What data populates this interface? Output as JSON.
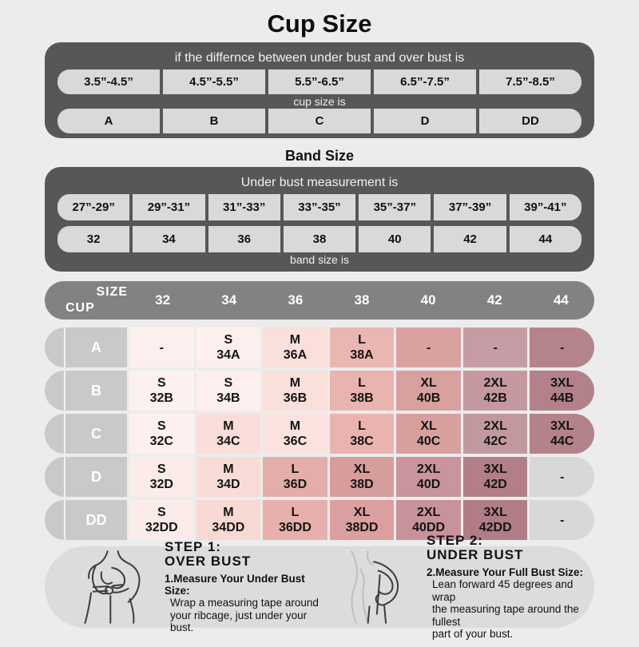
{
  "title": "Cup Size",
  "band_title": "Band Size",
  "colors": {
    "page_bg": "#ececec",
    "dark_panel": "#575757",
    "light_cell": "#d9d9d9",
    "matrix_header_bg": "#828282",
    "matrix_label_bg": "#c9c9c9",
    "steps_panel_bg": "#dcdcdc",
    "empty_cell_gray": "#d8d8d8"
  },
  "cup_table": {
    "header": "if the differnce between under bust and over bust is",
    "ranges": [
      "3.5”-4.5”",
      "4.5”-5.5”",
      "5.5”-6.5”",
      "6.5”-7.5”",
      "7.5”-8.5”"
    ],
    "mid_label": "cup size is",
    "cups": [
      "A",
      "B",
      "C",
      "D",
      "DD"
    ]
  },
  "band_table": {
    "header": "Under bust measurement is",
    "ranges": [
      "27”-29”",
      "29”-31”",
      "31”-33”",
      "33”-35”",
      "35”-37”",
      "37”-39”",
      "39”-41”"
    ],
    "sizes": [
      "32",
      "34",
      "36",
      "38",
      "40",
      "42",
      "44"
    ],
    "footer": "band size is"
  },
  "matrix": {
    "corner_top": "SIZE",
    "corner_bottom": "CUP",
    "columns": [
      "32",
      "34",
      "36",
      "38",
      "40",
      "42",
      "44"
    ],
    "rows": [
      {
        "cup": "A",
        "cells": [
          {
            "size": "-",
            "code": "",
            "bg": "#fcefee"
          },
          {
            "size": "S",
            "code": "34A",
            "bg": "#fcefee"
          },
          {
            "size": "M",
            "code": "36A",
            "bg": "#fbdfda"
          },
          {
            "size": "L",
            "code": "38A",
            "bg": "#eab6b2"
          },
          {
            "size": "-",
            "code": "",
            "bg": "#d9a1a0"
          },
          {
            "size": "-",
            "code": "",
            "bg": "#c59ca3"
          },
          {
            "size": "-",
            "code": "",
            "bg": "#b5838a"
          }
        ]
      },
      {
        "cup": "B",
        "cells": [
          {
            "size": "S",
            "code": "32B",
            "bg": "#fdf1f0"
          },
          {
            "size": "S",
            "code": "34B",
            "bg": "#fcefee"
          },
          {
            "size": "M",
            "code": "36B",
            "bg": "#fbdfda"
          },
          {
            "size": "L",
            "code": "38B",
            "bg": "#e9b3af"
          },
          {
            "size": "XL",
            "code": "40B",
            "bg": "#d8a09f"
          },
          {
            "size": "2XL",
            "code": "42B",
            "bg": "#c3999f"
          },
          {
            "size": "3XL",
            "code": "44B",
            "bg": "#b3818a"
          }
        ]
      },
      {
        "cup": "C",
        "cells": [
          {
            "size": "S",
            "code": "32C",
            "bg": "#fdf0ef"
          },
          {
            "size": "M",
            "code": "34C",
            "bg": "#fbdeda"
          },
          {
            "size": "M",
            "code": "36C",
            "bg": "#fce3df"
          },
          {
            "size": "L",
            "code": "38C",
            "bg": "#e9b4b0"
          },
          {
            "size": "XL",
            "code": "40C",
            "bg": "#d7a09f"
          },
          {
            "size": "2XL",
            "code": "42C",
            "bg": "#c2989f"
          },
          {
            "size": "3XL",
            "code": "44C",
            "bg": "#b4828a"
          }
        ]
      },
      {
        "cup": "D",
        "cells": [
          {
            "size": "S",
            "code": "32D",
            "bg": "#fbebe9"
          },
          {
            "size": "M",
            "code": "34D",
            "bg": "#f9dcd8"
          },
          {
            "size": "L",
            "code": "36D",
            "bg": "#e4adaa"
          },
          {
            "size": "XL",
            "code": "38D",
            "bg": "#d79d9c"
          },
          {
            "size": "2XL",
            "code": "40D",
            "bg": "#c9949b"
          },
          {
            "size": "3XL",
            "code": "42D",
            "bg": "#b27f88"
          },
          {
            "size": "-",
            "code": "",
            "bg": "#d8d8d8"
          }
        ]
      },
      {
        "cup": "DD",
        "cells": [
          {
            "size": "S",
            "code": "32DD",
            "bg": "#fbebe9"
          },
          {
            "size": "M",
            "code": "34DD",
            "bg": "#f8d9d4"
          },
          {
            "size": "L",
            "code": "36DD",
            "bg": "#e7b0ac"
          },
          {
            "size": "XL",
            "code": "38DD",
            "bg": "#da9f9e"
          },
          {
            "size": "2XL",
            "code": "40DD",
            "bg": "#c79299"
          },
          {
            "size": "3XL",
            "code": "42DD",
            "bg": "#b07d86"
          },
          {
            "size": "-",
            "code": "",
            "bg": "#d8d8d8"
          }
        ]
      }
    ]
  },
  "steps": [
    {
      "step_label": "STEP 1:",
      "area_label": "OVER BUST",
      "illustration": "front-measure-figure",
      "instruction_title": "1.Measure Your Under Bust Size:",
      "instruction_lines": [
        "Wrap a measuring tape around",
        "your ribcage, just under your bust."
      ]
    },
    {
      "step_label": "STEP 2:",
      "area_label": "UNDER BUST",
      "illustration": "side-measure-figure",
      "instruction_title": "2.Measure Your Full Bust Size:",
      "instruction_lines": [
        "Lean forward 45 degrees and wrap",
        "the measuring tape around the fullest",
        "part of your bust."
      ]
    }
  ],
  "chart_data": [
    {
      "type": "table",
      "title": "Cup Size",
      "header_row": "if the differnce between under bust and over bust is",
      "rows": [
        [
          "3.5”-4.5”",
          "4.5”-5.5”",
          "5.5”-6.5”",
          "6.5”-7.5”",
          "7.5”-8.5”"
        ],
        [
          "cup size is"
        ],
        [
          "A",
          "B",
          "C",
          "D",
          "DD"
        ]
      ]
    },
    {
      "type": "table",
      "title": "Band Size",
      "header_row": "Under bust measurement is",
      "rows": [
        [
          "27”-29”",
          "29”-31”",
          "31”-33”",
          "33”-35”",
          "35”-37”",
          "37”-39”",
          "39”-41”"
        ],
        [
          "32",
          "34",
          "36",
          "38",
          "40",
          "42",
          "44"
        ],
        [
          "band size is"
        ]
      ]
    },
    {
      "type": "table",
      "title": "Size matrix (CUP x SIZE)",
      "columns": [
        "CUP",
        "32",
        "34",
        "36",
        "38",
        "40",
        "42",
        "44"
      ],
      "rows": [
        [
          "A",
          "-",
          "S 34A",
          "M 36A",
          "L 38A",
          "-",
          "-",
          "-"
        ],
        [
          "B",
          "S 32B",
          "S 34B",
          "M 36B",
          "L 38B",
          "XL 40B",
          "2XL 42B",
          "3XL 44B"
        ],
        [
          "C",
          "S 32C",
          "M 34C",
          "M 36C",
          "L 38C",
          "XL 40C",
          "2XL 42C",
          "3XL 44C"
        ],
        [
          "D",
          "S 32D",
          "M 34D",
          "L 36D",
          "XL 38D",
          "2XL 40D",
          "3XL 42D",
          "-"
        ],
        [
          "DD",
          "S 32DD",
          "M 34DD",
          "L 36DD",
          "XL 38DD",
          "2XL 40DD",
          "3XL 42DD",
          "-"
        ]
      ]
    }
  ]
}
